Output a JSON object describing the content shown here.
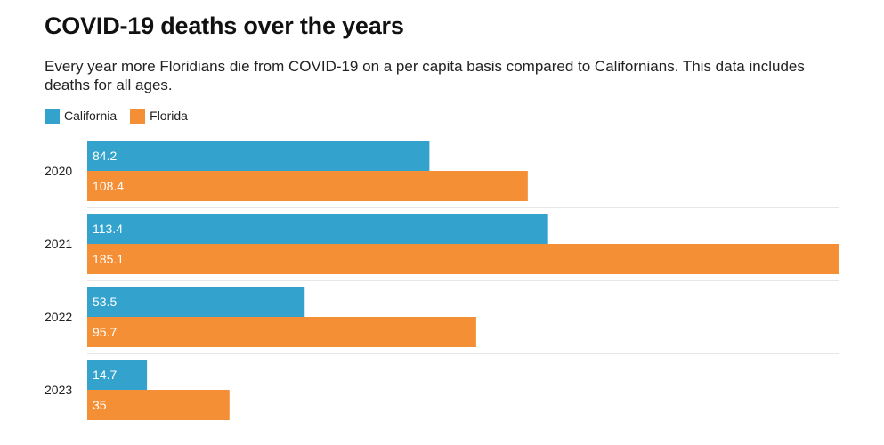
{
  "chart_data": {
    "type": "bar",
    "orientation": "horizontal",
    "title": "COVID-19 deaths over the years",
    "subtitle": "Every year more Floridians die from COVID-19 on a per capita basis compared to Californians. This data includes deaths for all ages.",
    "categories": [
      "2020",
      "2021",
      "2022",
      "2023"
    ],
    "series": [
      {
        "name": "California",
        "color": "#33a3cd",
        "values": [
          84.2,
          113.4,
          53.5,
          14.7
        ],
        "labels": [
          "84.2",
          "113.4",
          "53.5",
          "14.7"
        ]
      },
      {
        "name": "Florida",
        "color": "#f58f36",
        "values": [
          108.4,
          185.1,
          95.7,
          35
        ],
        "labels": [
          "108.4",
          "185.1",
          "95.7",
          "35"
        ]
      }
    ],
    "xlim": [
      0,
      185.1
    ],
    "legend_position": "top-left",
    "grid": false,
    "data_label_color": "#ffffff"
  }
}
